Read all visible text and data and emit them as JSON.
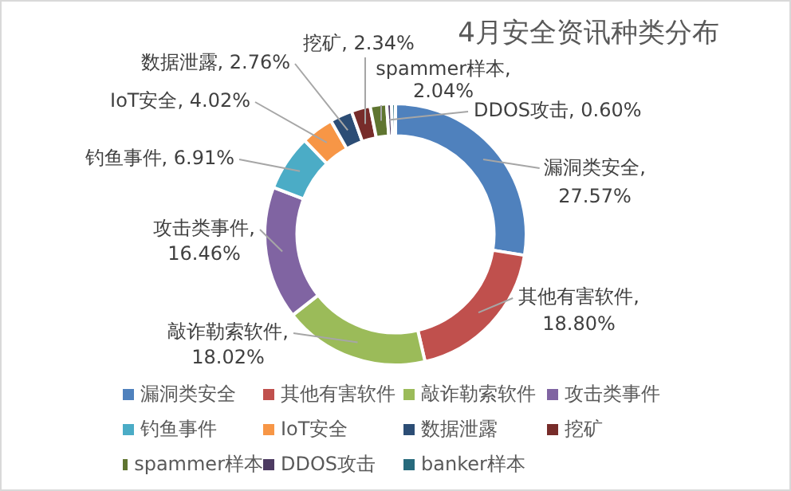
{
  "chart_data": {
    "type": "donut",
    "title": "4月安全资讯种类分布",
    "categories": [
      "漏洞类安全",
      "其他有害软件",
      "敲诈勒索软件",
      "攻击类事件",
      "钓鱼事件",
      "IoT安全",
      "数据泄露",
      "挖矿",
      "spammer样本",
      "DDOS攻击",
      "banker样本"
    ],
    "values": [
      27.57,
      18.8,
      18.02,
      16.46,
      6.91,
      4.02,
      2.76,
      2.34,
      2.04,
      0.6,
      0.48
    ],
    "colors": [
      "#4f81bd",
      "#c0504d",
      "#9bbb59",
      "#8064a2",
      "#4bacc6",
      "#f79646",
      "#2c4d75",
      "#772c2a",
      "#5f7530",
      "#4d3b62",
      "#276a7c"
    ],
    "value_labels": [
      "漏洞类安全, 27.57%",
      "其他有害软件, 18.80%",
      "敲诈勒索软件, 18.02%",
      "攻击类事件, 16.46%",
      "钓鱼事件, 6.91%",
      "IoT安全, 4.02%",
      "数据泄露, 2.76%",
      "挖矿, 2.34%",
      "spammer样本, 2.04%",
      "DDOS攻击, 0.60%",
      null
    ],
    "legend": "bottom"
  }
}
